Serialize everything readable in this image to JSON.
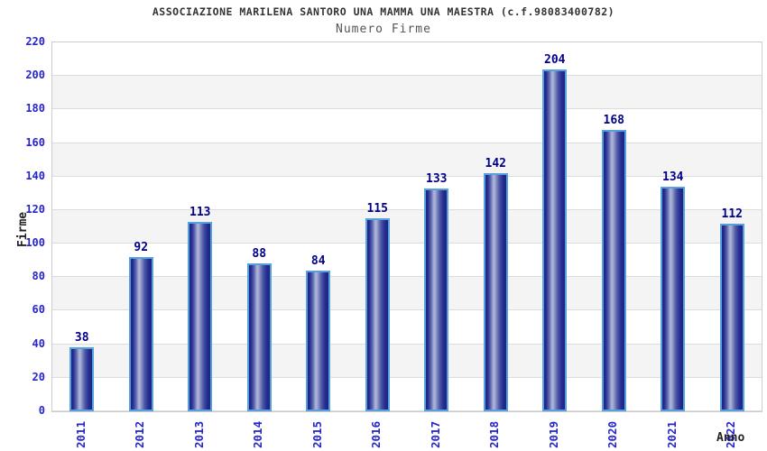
{
  "header": {
    "title": "ASSOCIAZIONE MARILENA SANTORO UNA MAMMA UNA MAESTRA (c.f.98083400782)",
    "subtitle": "Numero Firme"
  },
  "chart_data": {
    "type": "bar",
    "title": "ASSOCIAZIONE MARILENA SANTORO UNA MAMMA UNA MAESTRA (c.f.98083400782)",
    "subtitle": "Numero Firme",
    "categories": [
      "2011",
      "2012",
      "2013",
      "2014",
      "2015",
      "2016",
      "2017",
      "2018",
      "2019",
      "2020",
      "2021",
      "2022"
    ],
    "values": [
      38,
      92,
      113,
      88,
      84,
      115,
      133,
      142,
      204,
      168,
      134,
      112
    ],
    "xlabel": "Anno",
    "ylabel": "Firme",
    "ylim": [
      0,
      220
    ],
    "ytick_step": 20,
    "grid": "horizontal-bands-alternating",
    "legend_position": "none",
    "colors": {
      "bar_border": "#55a0dd",
      "bar_dark": "#1c2380",
      "bar_highlight": "#b2b8dc",
      "tick_label": "#2424cc",
      "value_label": "#00008b",
      "title": "#333333",
      "subtitle": "#555555",
      "band_gray": "#f4f4f4",
      "band_white": "#ffffff",
      "gridline": "#dcdcdc",
      "plot_border": "#cccccc"
    }
  }
}
